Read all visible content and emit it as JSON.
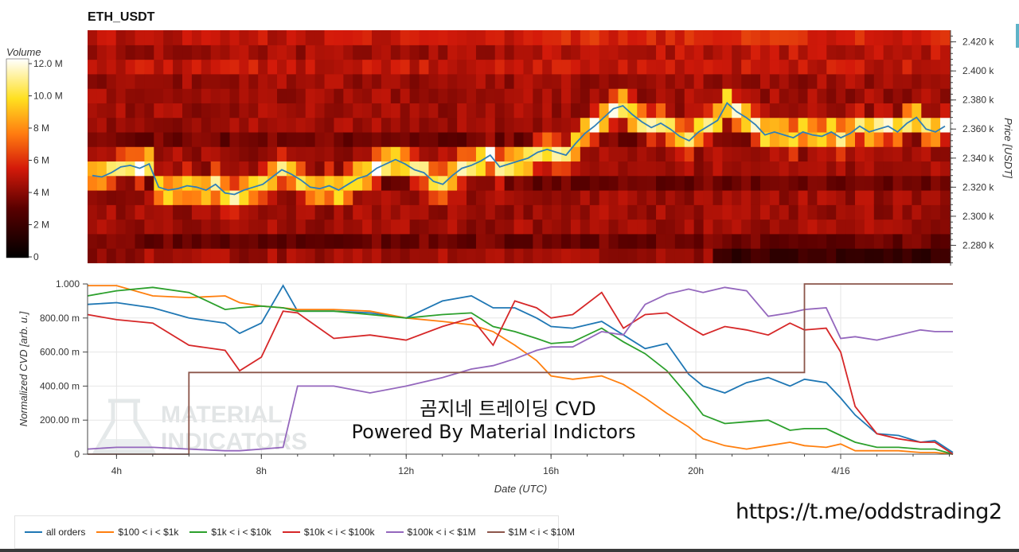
{
  "colors": {
    "cvd_all": "#1f77b4",
    "cvd_100_1k": "#ff7f0e",
    "cvd_1k_10k": "#2ca02c",
    "cvd_10k_100k": "#d62728",
    "cvd_100k_1m": "#9467bd",
    "cvd_1m_10m": "#8c564b",
    "price_line": "#2f7fb8"
  },
  "watermark": {
    "line1": "MATERIAL",
    "line2": "INDICATORS",
    "icon": "flask-icon"
  },
  "overlay": {
    "line1": "곰지네 트레이딩 CVD",
    "line2": "Powered By Material Indictors"
  },
  "link": "https://t.me/oddstrading2",
  "chart_data": [
    {
      "type": "heatmap",
      "title": "ETH_USDT",
      "colorbar": {
        "label": "Volume",
        "ticks": [
          "12.0 M",
          "10.0 M",
          "8 M",
          "6 M",
          "4 M",
          "2 M",
          "0"
        ],
        "range": [
          0,
          12
        ]
      },
      "ylabel": "Price [USDT]",
      "y_ticks": [
        "2.420 k",
        "2.400 k",
        "2.380 k",
        "2.360 k",
        "2.340 k",
        "2.320 k",
        "2.300 k",
        "2.280 k"
      ],
      "ylim": [
        2266,
        2428
      ],
      "price_bins": [
        2268,
        2278,
        2288,
        2298,
        2308,
        2318,
        2328,
        2338,
        2348,
        2358,
        2368,
        2378,
        2388,
        2398,
        2408,
        2418
      ],
      "price_line": [
        2328,
        2327,
        2330,
        2334,
        2335,
        2333,
        2336,
        2320,
        2318,
        2319,
        2321,
        2320,
        2318,
        2322,
        2316,
        2315,
        2318,
        2320,
        2322,
        2327,
        2332,
        2329,
        2325,
        2320,
        2319,
        2321,
        2318,
        2322,
        2326,
        2328,
        2333,
        2336,
        2339,
        2336,
        2332,
        2330,
        2324,
        2322,
        2328,
        2333,
        2335,
        2338,
        2342,
        2334,
        2336,
        2338,
        2340,
        2344,
        2346,
        2344,
        2342,
        2350,
        2357,
        2362,
        2368,
        2374,
        2376,
        2370,
        2365,
        2361,
        2364,
        2360,
        2355,
        2352,
        2358,
        2362,
        2366,
        2378,
        2372,
        2368,
        2363,
        2356,
        2358,
        2356,
        2354,
        2358,
        2356,
        2355,
        2358,
        2354,
        2357,
        2362,
        2358,
        2360,
        2362,
        2358,
        2364,
        2368,
        2360,
        2358,
        2362
      ]
    },
    {
      "type": "line",
      "title": "",
      "xlabel": "Date (UTC)",
      "ylabel": "Normalized CVD [arb. u.]",
      "x_ticks": [
        "4h",
        "8h",
        "12h",
        "16h",
        "20h",
        "4/16"
      ],
      "x_tick_hours": [
        4,
        8,
        12,
        16,
        20,
        24
      ],
      "xlim": [
        3.2,
        27.1
      ],
      "y_ticks": [
        "0",
        "200.00 m",
        "400.00 m",
        "600.00 m",
        "800.00 m",
        "1.000"
      ],
      "ylim": [
        0,
        1
      ],
      "x": [
        3.2,
        4.0,
        5.0,
        6.0,
        7.0,
        7.4,
        8.0,
        8.6,
        9.0,
        10.0,
        11.0,
        12.0,
        13.0,
        13.8,
        14.4,
        15.0,
        15.6,
        16.0,
        16.6,
        17.4,
        18.0,
        18.6,
        19.2,
        19.8,
        20.2,
        20.8,
        21.4,
        22.0,
        22.6,
        23.0,
        23.6,
        24.0,
        24.4,
        25.0,
        25.6,
        26.2,
        26.6,
        27.1
      ],
      "series": [
        {
          "name": "all orders",
          "label": "all orders",
          "values": [
            0.88,
            0.89,
            0.86,
            0.8,
            0.77,
            0.71,
            0.77,
            0.99,
            0.84,
            0.84,
            0.83,
            0.8,
            0.9,
            0.93,
            0.86,
            0.86,
            0.8,
            0.75,
            0.74,
            0.78,
            0.7,
            0.62,
            0.65,
            0.47,
            0.4,
            0.36,
            0.42,
            0.45,
            0.4,
            0.44,
            0.42,
            0.33,
            0.23,
            0.12,
            0.11,
            0.07,
            0.08,
            0.01
          ]
        },
        {
          "name": "$100 < i < $1k",
          "label": "$100 < i < $1k",
          "values": [
            0.99,
            0.99,
            0.93,
            0.92,
            0.93,
            0.89,
            0.87,
            0.86,
            0.85,
            0.85,
            0.84,
            0.8,
            0.78,
            0.76,
            0.72,
            0.64,
            0.55,
            0.46,
            0.44,
            0.46,
            0.41,
            0.33,
            0.24,
            0.16,
            0.09,
            0.05,
            0.03,
            0.05,
            0.07,
            0.05,
            0.04,
            0.06,
            0.02,
            0.02,
            0.02,
            0.01,
            0.01,
            0.0
          ]
        },
        {
          "name": "$1k < i < $10k",
          "label": "$1k < i < $10k",
          "values": [
            0.93,
            0.96,
            0.98,
            0.95,
            0.85,
            0.86,
            0.87,
            0.86,
            0.84,
            0.84,
            0.82,
            0.8,
            0.82,
            0.83,
            0.75,
            0.72,
            0.68,
            0.65,
            0.66,
            0.74,
            0.66,
            0.59,
            0.49,
            0.34,
            0.23,
            0.18,
            0.19,
            0.2,
            0.14,
            0.15,
            0.15,
            0.11,
            0.07,
            0.04,
            0.04,
            0.03,
            0.03,
            0.0
          ]
        },
        {
          "name": "$10k < i < $100k",
          "label": "$10k < i < $100k",
          "values": [
            0.82,
            0.79,
            0.77,
            0.64,
            0.61,
            0.49,
            0.57,
            0.84,
            0.83,
            0.68,
            0.7,
            0.67,
            0.75,
            0.8,
            0.64,
            0.9,
            0.86,
            0.8,
            0.82,
            0.95,
            0.74,
            0.82,
            0.83,
            0.75,
            0.7,
            0.75,
            0.73,
            0.7,
            0.77,
            0.73,
            0.74,
            0.6,
            0.28,
            0.12,
            0.09,
            0.07,
            0.07,
            0.0
          ]
        },
        {
          "name": "$100k < i < $1M",
          "label": "$100k < i < $1M",
          "values": [
            0.03,
            0.04,
            0.04,
            0.03,
            0.02,
            0.02,
            0.03,
            0.04,
            0.4,
            0.4,
            0.36,
            0.4,
            0.45,
            0.5,
            0.52,
            0.56,
            0.61,
            0.63,
            0.63,
            0.72,
            0.7,
            0.88,
            0.94,
            0.97,
            0.95,
            0.98,
            0.96,
            0.81,
            0.83,
            0.85,
            0.86,
            0.68,
            0.69,
            0.67,
            0.7,
            0.73,
            0.72,
            0.72
          ]
        },
        {
          "name": "$1M < i < $10M",
          "label": "$1M < i < $10M",
          "values": [
            0.0,
            0.0,
            0.0,
            0.48,
            0.48,
            0.48,
            0.48,
            0.48,
            0.48,
            0.48,
            0.48,
            0.48,
            0.48,
            0.48,
            0.48,
            0.48,
            0.48,
            0.48,
            0.48,
            0.48,
            0.48,
            0.48,
            0.48,
            0.48,
            0.48,
            0.48,
            0.48,
            0.48,
            0.48,
            1.0,
            1.0,
            1.0,
            1.0,
            1.0,
            1.0,
            1.0,
            1.0,
            1.0
          ]
        }
      ]
    }
  ]
}
